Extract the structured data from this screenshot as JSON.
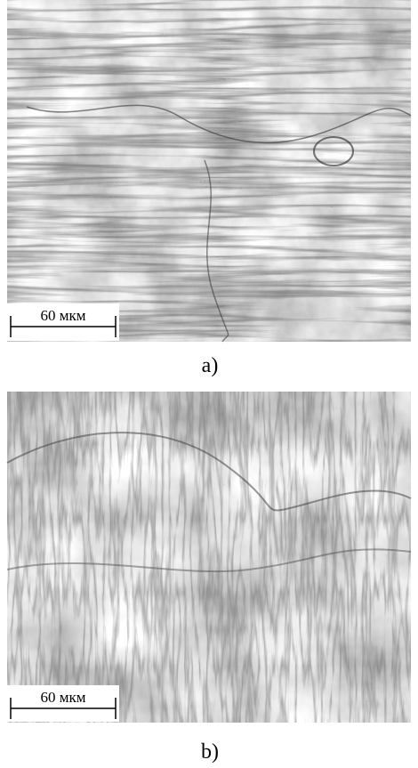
{
  "panels": [
    {
      "scale_label": "60 мкм",
      "caption": "a)"
    },
    {
      "scale_label": "60 мкм",
      "caption": "b)"
    }
  ]
}
